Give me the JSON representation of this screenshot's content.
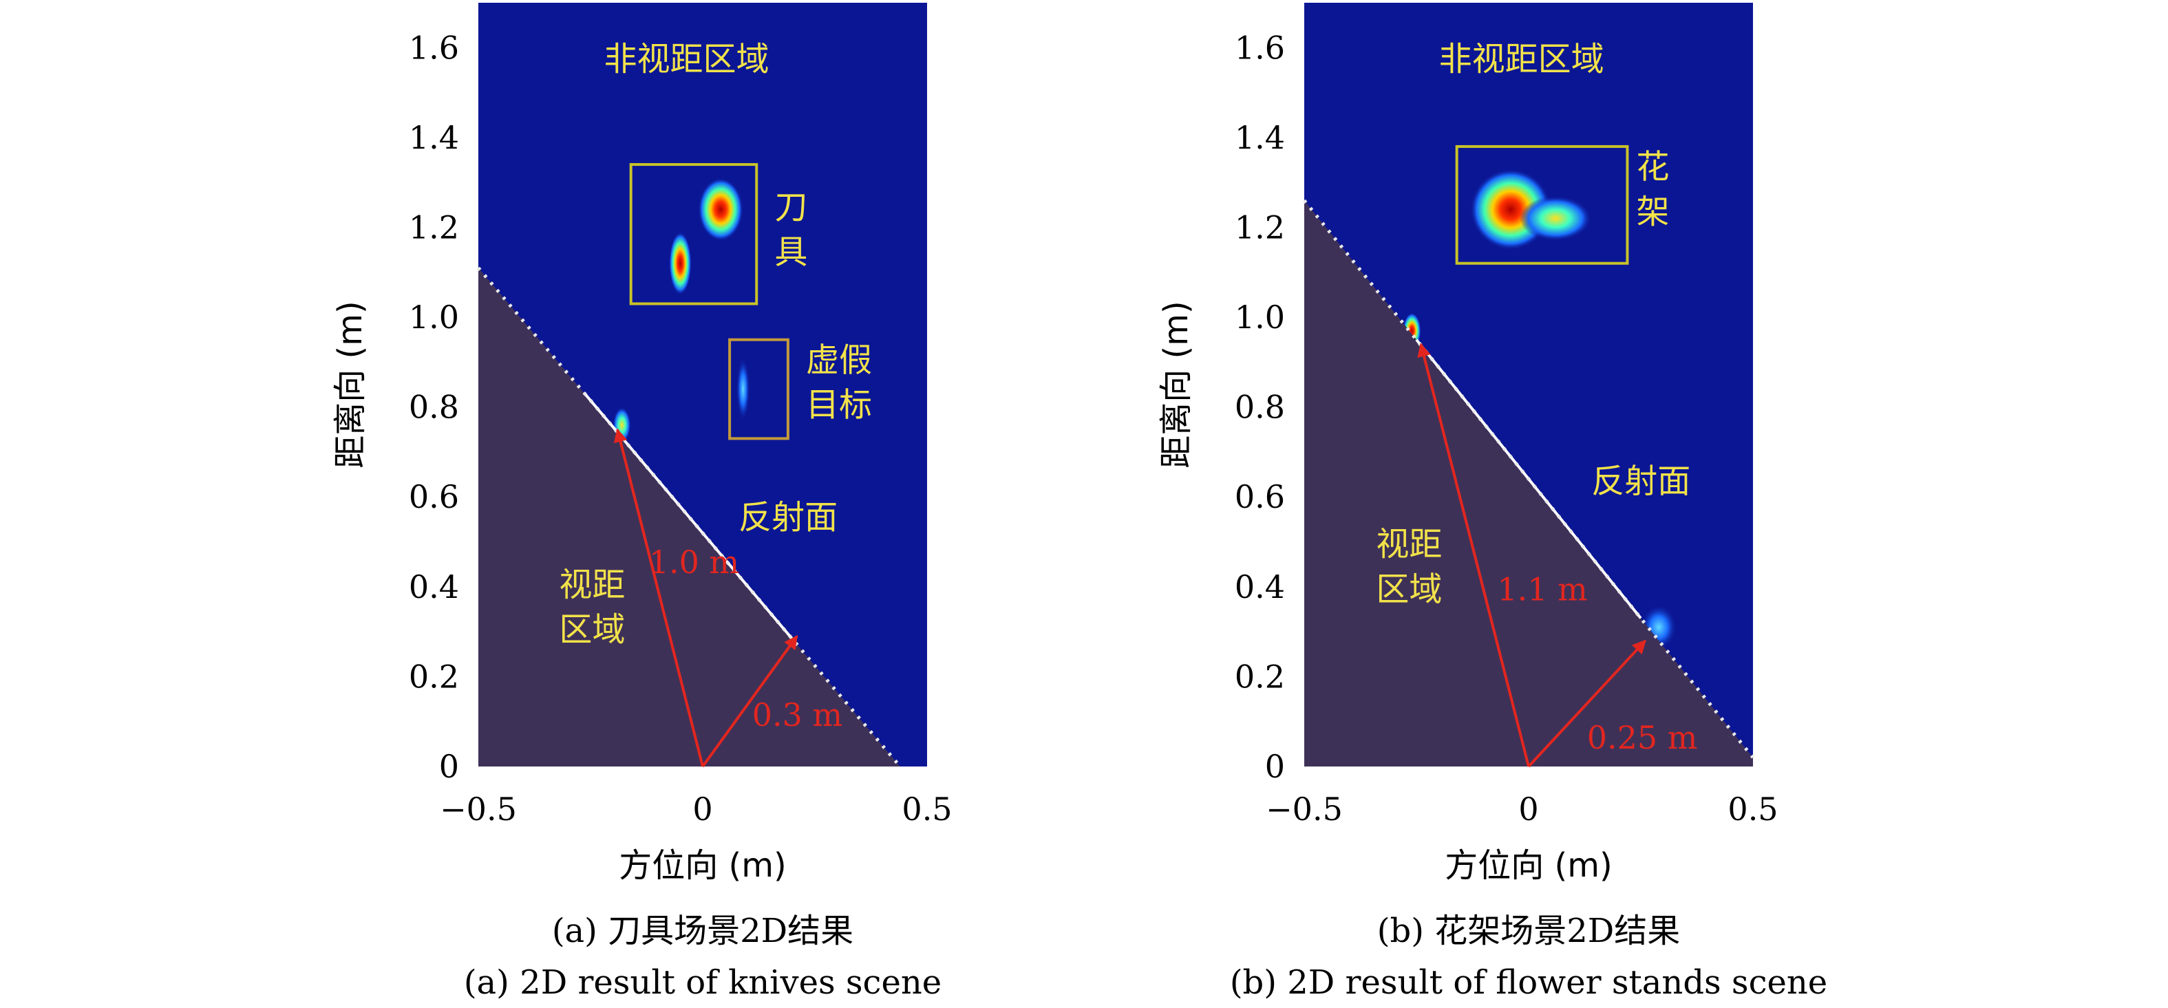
{
  "chart_data": [
    {
      "type": "heatmap",
      "panel": "a",
      "xlabel": "方位向 (m)",
      "ylabel": "距离向 (m)",
      "xlim": [
        -0.5,
        0.5
      ],
      "ylim": [
        0,
        1.7
      ],
      "x_ticks": [
        "−0.5",
        "0",
        "0.5"
      ],
      "y_ticks": [
        "0",
        "0.2",
        "0.4",
        "0.6",
        "0.8",
        "1.0",
        "1.2",
        "1.4",
        "1.6"
      ],
      "caption_cn": "(a) 刀具场景2D结果",
      "caption_en": "(a) 2D result of knives scene",
      "labels": {
        "nlos": "非视距区域",
        "target_1": "刀",
        "target_2": "具",
        "fake_1": "虚假",
        "fake_2": "目标",
        "reflector": "反射面",
        "los_1": "视距",
        "los_2": "区域",
        "dist_main": "1.0 m",
        "dist_perp": "0.3 m"
      },
      "wall_line": [
        [
          -0.5,
          1.11
        ],
        [
          0.44,
          0.0
        ]
      ],
      "arrow_main": {
        "from": [
          0,
          0
        ],
        "to": [
          -0.19,
          0.75
        ]
      },
      "arrow_perp": {
        "from": [
          0,
          0
        ],
        "to": [
          0.21,
          0.29
        ]
      },
      "target_box": {
        "x": [
          -0.16,
          0.12
        ],
        "y": [
          1.03,
          1.34
        ]
      },
      "fake_box": {
        "x": [
          0.06,
          0.19
        ],
        "y": [
          0.73,
          0.95
        ]
      },
      "hotspots": [
        {
          "x": 0.04,
          "y": 1.24,
          "rx": 0.05,
          "ry": 0.07,
          "intensity": 1.0
        },
        {
          "x": -0.05,
          "y": 1.12,
          "rx": 0.025,
          "ry": 0.07,
          "intensity": 0.9
        },
        {
          "x": 0.09,
          "y": 0.84,
          "rx": 0.015,
          "ry": 0.07,
          "intensity": 0.3
        },
        {
          "x": -0.18,
          "y": 0.76,
          "rx": 0.02,
          "ry": 0.04,
          "intensity": 0.55
        }
      ],
      "colors": {
        "background": "#0b1694",
        "los_region": "#3e3158",
        "box": "#c8c22a",
        "fake_box": "#c49a3a",
        "arrow": "#e2261f"
      }
    },
    {
      "type": "heatmap",
      "panel": "b",
      "xlabel": "方位向 (m)",
      "ylabel": "距离向 (m)",
      "xlim": [
        -0.5,
        0.5
      ],
      "ylim": [
        0,
        1.7
      ],
      "x_ticks": [
        "−0.5",
        "0",
        "0.5"
      ],
      "y_ticks": [
        "0",
        "0.2",
        "0.4",
        "0.6",
        "0.8",
        "1.0",
        "1.2",
        "1.4",
        "1.6"
      ],
      "caption_cn": "(b) 花架场景2D结果",
      "caption_en": "(b) 2D result of flower stands scene",
      "labels": {
        "nlos": "非视距区域",
        "target_1": "花",
        "target_2": "架",
        "reflector": "反射面",
        "los_1": "视距",
        "los_2": "区域",
        "dist_main": "1.1 m",
        "dist_perp": "0.25 m"
      },
      "wall_line": [
        [
          -0.5,
          1.26
        ],
        [
          0.5,
          0.02
        ]
      ],
      "arrow_main": {
        "from": [
          0,
          0
        ],
        "to": [
          -0.24,
          0.94
        ]
      },
      "arrow_perp": {
        "from": [
          0,
          0
        ],
        "to": [
          0.26,
          0.28
        ]
      },
      "target_box": {
        "x": [
          -0.16,
          0.22
        ],
        "y": [
          1.12,
          1.38
        ]
      },
      "hotspots": [
        {
          "x": -0.04,
          "y": 1.24,
          "rx": 0.09,
          "ry": 0.09,
          "intensity": 0.9
        },
        {
          "x": 0.06,
          "y": 1.22,
          "rx": 0.08,
          "ry": 0.05,
          "intensity": 0.6
        },
        {
          "x": -0.26,
          "y": 0.97,
          "rx": 0.02,
          "ry": 0.04,
          "intensity": 0.85
        },
        {
          "x": 0.29,
          "y": 0.31,
          "rx": 0.04,
          "ry": 0.05,
          "intensity": 0.4
        }
      ],
      "colors": {
        "background": "#0b1694",
        "los_region": "#3e3158",
        "box": "#c8c22a",
        "arrow": "#e2261f"
      }
    }
  ]
}
